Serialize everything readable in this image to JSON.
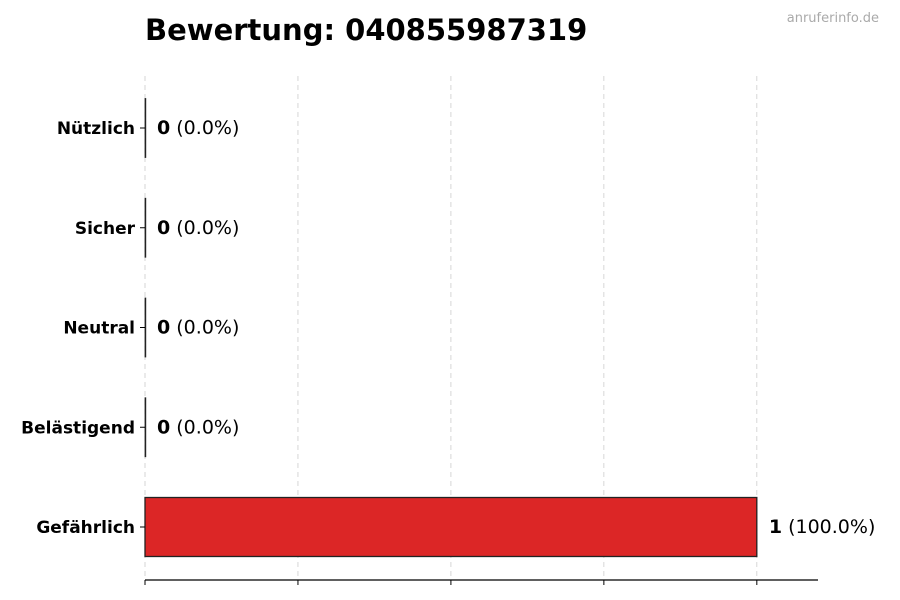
{
  "watermark": "anruferinfo.de",
  "chart_data": {
    "type": "bar",
    "orientation": "horizontal",
    "title": "Bewertung: 040855987319",
    "categories": [
      "Nützlich",
      "Sicher",
      "Neutral",
      "Belästigend",
      "Gefährlich"
    ],
    "values": [
      0,
      0,
      0,
      0,
      1
    ],
    "value_labels": [
      {
        "count": "0",
        "pct": "(0.0%)"
      },
      {
        "count": "0",
        "pct": "(0.0%)"
      },
      {
        "count": "0",
        "pct": "(0.0%)"
      },
      {
        "count": "0",
        "pct": "(0.0%)"
      },
      {
        "count": "1",
        "pct": "(100.0%)"
      }
    ],
    "bar_color": "#dc2626",
    "xlim": [
      0,
      1.1
    ],
    "xticks": [
      0,
      0.25,
      0.5,
      0.75,
      1.0
    ],
    "xtick_labels_shown": false,
    "grid": "vertical dashed",
    "xlabel": "",
    "ylabel": ""
  }
}
